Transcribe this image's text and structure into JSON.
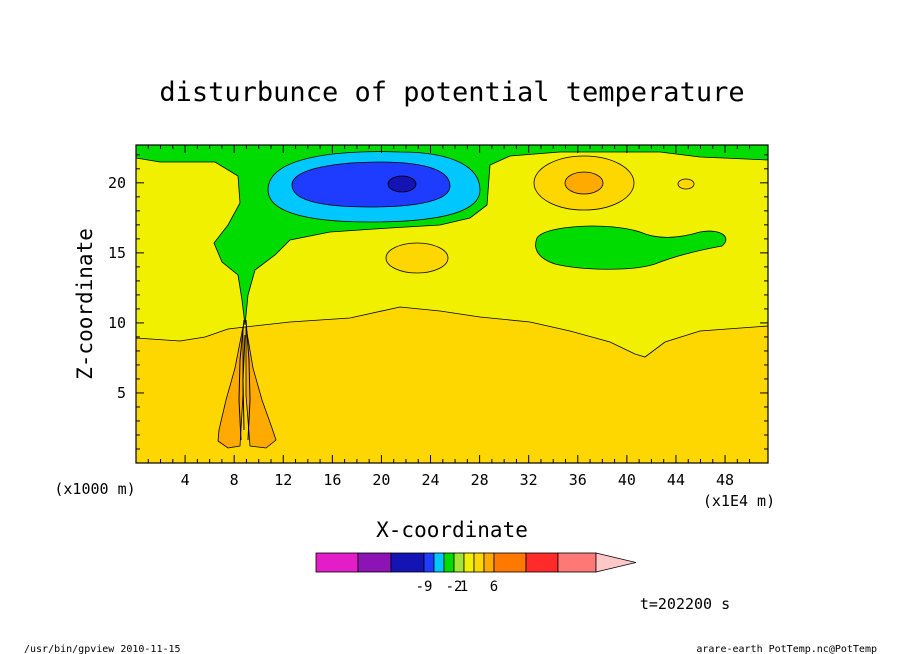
{
  "chart_data": {
    "type": "contour",
    "title": "disturbunce of potential temperature",
    "xlabel": "X-coordinate",
    "ylabel": "Z-coordinate",
    "x_unit_label": "(x1E4 m)",
    "z_unit_label": "(x1000 m)",
    "xlim": [
      0,
      51.5
    ],
    "ylim": [
      0,
      22.7
    ],
    "x_ticks": [
      4,
      8,
      12,
      16,
      20,
      24,
      28,
      32,
      36,
      40,
      44,
      48
    ],
    "y_ticks": [
      5,
      10,
      15,
      20
    ],
    "colorbar": {
      "colors": [
        "#e31ec8",
        "#8c14b4",
        "#1414b4",
        "#1e3cff",
        "#00c8ff",
        "#00dc00",
        "#a0e632",
        "#f0f000",
        "#ffd700",
        "#ffaa00",
        "#ff7800",
        "#ff2a2a",
        "#ff7878",
        "#ffc8c8"
      ],
      "tick_labels": [
        {
          "value": "-9",
          "index": 3
        },
        {
          "value": "-2",
          "index": 6
        },
        {
          "value": "1",
          "index": 7
        },
        {
          "value": "6",
          "index": 10
        }
      ]
    },
    "regions": [
      {
        "name": "warm-lower-layer",
        "level": "1 to 2",
        "color": "#ffd700"
      },
      {
        "name": "neutral-mid-layer",
        "level": "0 to 1",
        "color": "#f0f000"
      },
      {
        "name": "cool-upper-green",
        "level": "-1 to 0",
        "color": "#00dc00"
      },
      {
        "name": "cold-cyan-anomaly",
        "level": "-5 to -2",
        "color": "#00c8ff"
      },
      {
        "name": "cold-blue-anomaly",
        "level": "-7 to -5",
        "color": "#1e3cff"
      },
      {
        "name": "cold-core",
        "level": "-9 to -7",
        "color": "#1414b4"
      },
      {
        "name": "warm-anomaly-36",
        "level": "1 to 2",
        "color": "#ffd700"
      },
      {
        "name": "warm-core-36",
        "level": "2 to 3",
        "color": "#ffaa00"
      },
      {
        "name": "warm-anomaly-23",
        "level": "1 to 2",
        "color": "#ffd700"
      },
      {
        "name": "cool-anomaly-40",
        "level": "-1 to 0",
        "color": "#00dc00"
      },
      {
        "name": "plume-warm",
        "level": "2 to 3",
        "color": "#ffaa00"
      }
    ]
  },
  "time_label": "t=202200 s",
  "footer": {
    "left": "/usr/bin/gpview   2010-11-15",
    "right": "arare-earth_PotTemp.nc@PotTemp"
  }
}
